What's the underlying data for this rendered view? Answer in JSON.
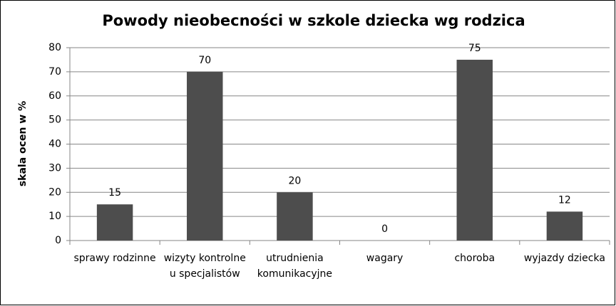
{
  "chart_data": {
    "type": "bar",
    "title": "Powody nieobecności w szkole dziecka wg rodzica",
    "y_label": "skala ocen w %",
    "categories": [
      "sprawy rodzinne",
      "wizyty kontrolne u specjalistów",
      "utrudnienia komunikacyjne",
      "wagary",
      "choroba",
      "wyjazdy dziecka"
    ],
    "values": [
      15,
      70,
      20,
      0,
      75,
      12
    ],
    "color": "#4d4d4d",
    "ylim": [
      0,
      80
    ],
    "yticks": [
      0,
      10,
      20,
      30,
      40,
      50,
      60,
      70,
      80
    ],
    "grid": true
  }
}
